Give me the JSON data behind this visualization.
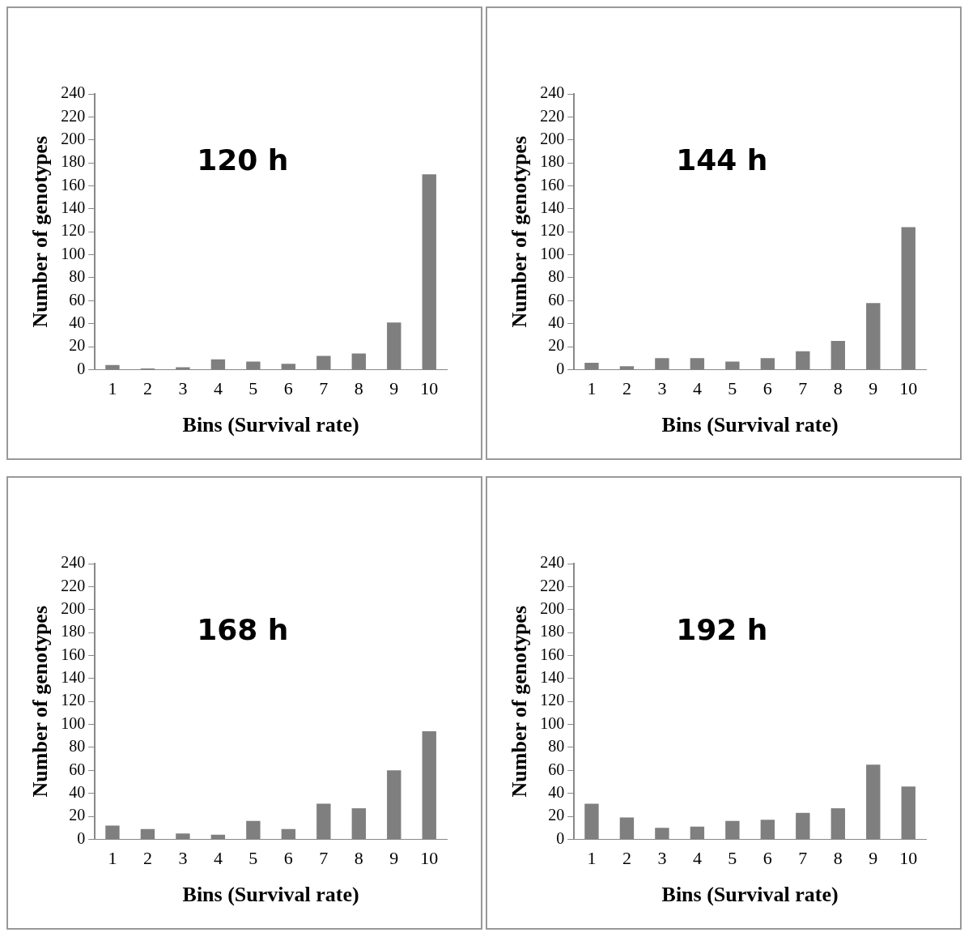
{
  "chart_data": [
    {
      "type": "bar",
      "title": "120 h",
      "xlabel": "Bins (Survival rate)",
      "ylabel": "Number of genotypes",
      "categories": [
        "1",
        "2",
        "3",
        "4",
        "5",
        "6",
        "7",
        "8",
        "9",
        "10"
      ],
      "values": [
        4,
        1,
        2,
        9,
        7,
        5,
        12,
        14,
        41,
        170
      ],
      "color": "#7f7f7f",
      "ylim": [
        0,
        240
      ],
      "yticks": [
        0,
        20,
        40,
        60,
        80,
        100,
        120,
        140,
        160,
        180,
        200,
        220,
        240
      ]
    },
    {
      "type": "bar",
      "title": "144 h",
      "xlabel": "Bins (Survival rate)",
      "ylabel": "Number of genotypes",
      "categories": [
        "1",
        "2",
        "3",
        "4",
        "5",
        "6",
        "7",
        "8",
        "9",
        "10"
      ],
      "values": [
        6,
        3,
        10,
        10,
        7,
        10,
        16,
        25,
        58,
        124
      ],
      "color": "#7f7f7f",
      "ylim": [
        0,
        240
      ],
      "yticks": [
        0,
        20,
        40,
        60,
        80,
        100,
        120,
        140,
        160,
        180,
        200,
        220,
        240
      ]
    },
    {
      "type": "bar",
      "title": "168 h",
      "xlabel": "Bins (Survival rate)",
      "ylabel": "Number of genotypes",
      "categories": [
        "1",
        "2",
        "3",
        "4",
        "5",
        "6",
        "7",
        "8",
        "9",
        "10"
      ],
      "values": [
        12,
        9,
        5,
        4,
        16,
        9,
        31,
        27,
        60,
        94
      ],
      "color": "#7f7f7f",
      "ylim": [
        0,
        240
      ],
      "yticks": [
        0,
        20,
        40,
        60,
        80,
        100,
        120,
        140,
        160,
        180,
        200,
        220,
        240
      ]
    },
    {
      "type": "bar",
      "title": "192 h",
      "xlabel": "Bins (Survival rate)",
      "ylabel": "Number of genotypes",
      "categories": [
        "1",
        "2",
        "3",
        "4",
        "5",
        "6",
        "7",
        "8",
        "9",
        "10"
      ],
      "values": [
        31,
        19,
        10,
        11,
        16,
        17,
        23,
        27,
        65,
        46
      ],
      "color": "#7f7f7f",
      "ylim": [
        0,
        240
      ],
      "yticks": [
        0,
        20,
        40,
        60,
        80,
        100,
        120,
        140,
        160,
        180,
        200,
        220,
        240
      ]
    }
  ]
}
